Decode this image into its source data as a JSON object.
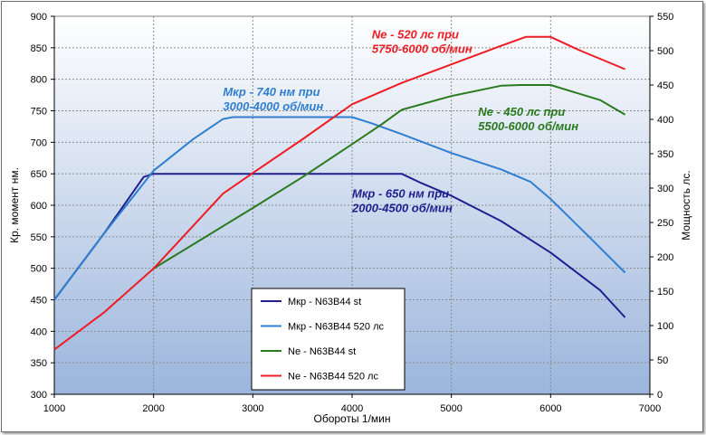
{
  "chart_data": {
    "type": "line",
    "xlabel": "Обороты 1/мин",
    "ylabel": "Кр. момент  нм.",
    "y2label": "Мощность лс.",
    "xlim": [
      1000,
      7000
    ],
    "ylim": [
      300,
      900
    ],
    "y2lim": [
      0,
      550
    ],
    "x_ticks": [
      1000,
      2000,
      3000,
      4000,
      5000,
      6000,
      7000
    ],
    "y_ticks": [
      300,
      350,
      400,
      450,
      500,
      550,
      600,
      650,
      700,
      750,
      800,
      850,
      900
    ],
    "y2_ticks": [
      0,
      50,
      100,
      150,
      200,
      250,
      300,
      350,
      400,
      450,
      500,
      550
    ],
    "grid": true,
    "background": "gradient light blue",
    "legend_placement": "bottom-center",
    "series": [
      {
        "name": "Мкр - N63B44 st",
        "axis": "left",
        "color": "#1f1f8f",
        "points": [
          [
            1000,
            450
          ],
          [
            1500,
            555
          ],
          [
            1900,
            645
          ],
          [
            2000,
            650
          ],
          [
            3000,
            650
          ],
          [
            4000,
            650
          ],
          [
            4500,
            650
          ],
          [
            4700,
            635
          ],
          [
            5000,
            615
          ],
          [
            5500,
            575
          ],
          [
            5800,
            545
          ],
          [
            6000,
            525
          ],
          [
            6500,
            465
          ],
          [
            6750,
            422
          ]
        ]
      },
      {
        "name": "Мкр - N63B44 520 лс",
        "axis": "left",
        "color": "#2f7fd0",
        "points": [
          [
            1000,
            450
          ],
          [
            1500,
            555
          ],
          [
            2000,
            655
          ],
          [
            2400,
            705
          ],
          [
            2700,
            737
          ],
          [
            2800,
            740
          ],
          [
            3000,
            740
          ],
          [
            4000,
            740
          ],
          [
            4200,
            730
          ],
          [
            4500,
            713
          ],
          [
            5000,
            683
          ],
          [
            5500,
            657
          ],
          [
            5800,
            637
          ],
          [
            6000,
            610
          ],
          [
            6400,
            548
          ],
          [
            6750,
            493
          ]
        ]
      },
      {
        "name": "Ne -  N63B44 st",
        "axis": "right",
        "color": "#2a7a1f",
        "points": [
          [
            2000,
            183
          ],
          [
            2500,
            227
          ],
          [
            3000,
            271
          ],
          [
            3500,
            316
          ],
          [
            4000,
            364
          ],
          [
            4300,
            393
          ],
          [
            4500,
            414
          ],
          [
            5000,
            434
          ],
          [
            5500,
            449
          ],
          [
            5700,
            450
          ],
          [
            6000,
            450
          ],
          [
            6500,
            428
          ],
          [
            6750,
            407
          ]
        ]
      },
      {
        "name": "Ne -  N63B44 520 лс",
        "axis": "right",
        "color": "#ee1c24",
        "points": [
          [
            1000,
            65
          ],
          [
            1500,
            119
          ],
          [
            2000,
            183
          ],
          [
            2700,
            292
          ],
          [
            3000,
            322
          ],
          [
            3500,
            371
          ],
          [
            4000,
            422
          ],
          [
            4500,
            453
          ],
          [
            5000,
            480
          ],
          [
            5500,
            507
          ],
          [
            5750,
            520
          ],
          [
            6000,
            520
          ],
          [
            6300,
            500
          ],
          [
            6750,
            473
          ]
        ]
      }
    ],
    "annotations": [
      {
        "line1": "Ne - 520 лс при",
        "line2": "5750-6000 об/мин",
        "color": "#ee1c24",
        "x": 4200,
        "y": 865
      },
      {
        "line1": "Мкр - 740 нм при",
        "line2": "3000-4000 об/мин",
        "color": "#2f7fd0",
        "x": 2700,
        "y": 774
      },
      {
        "line1": "Ne - 450 лс при",
        "line2": "5500-6000 об/мин",
        "color": "#2a7a1f",
        "x": 5270,
        "y": 742
      },
      {
        "line1": "Мкр - 650 нм при",
        "line2": "2000-4500 об/мин",
        "color": "#1f1f8f",
        "x": 4000,
        "y": 612
      }
    ]
  }
}
